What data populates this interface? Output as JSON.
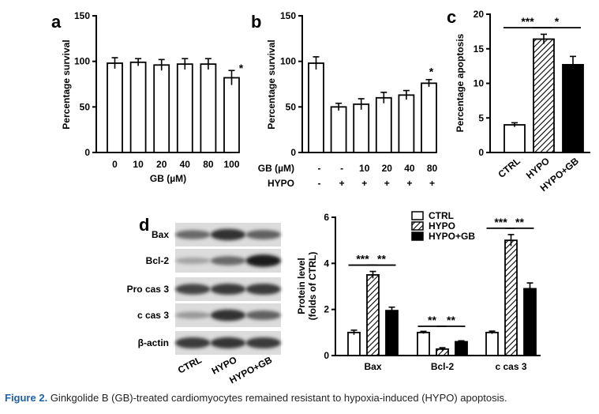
{
  "caption": {
    "label": "Figure 2.",
    "text": "Ginkgolide B (GB)-treated cardiomyocytes remained resistant to hypoxia-induced (HYPO) apoptosis."
  },
  "chart_data": [
    {
      "id": "a",
      "panel_label": "a",
      "type": "bar",
      "ylabel": "Percentage survival",
      "xlabel": "GB (µM)",
      "categories": [
        "0",
        "10",
        "20",
        "40",
        "80",
        "100"
      ],
      "values": [
        98,
        99,
        96,
        97,
        97,
        82
      ],
      "errors": [
        6,
        4,
        6,
        6,
        6,
        8
      ],
      "significance": [
        "",
        "",
        "",
        "",
        "",
        "*"
      ],
      "ylim": [
        0,
        150
      ],
      "yticks": [
        "0",
        "50",
        "100",
        "150"
      ],
      "fill": "#ffffff"
    },
    {
      "id": "b",
      "panel_label": "b",
      "type": "bar",
      "ylabel": "Percentage survival",
      "values": [
        98,
        50,
        53,
        60,
        63,
        76
      ],
      "errors": [
        7,
        4,
        6,
        6,
        5,
        4
      ],
      "significance": [
        "",
        "",
        "",
        "",
        "",
        "*"
      ],
      "ylim": [
        0,
        150
      ],
      "yticks": [
        "0",
        "50",
        "100",
        "150"
      ],
      "condition_rows": [
        {
          "label": "GB (µM)",
          "values": [
            "-",
            "-",
            "10",
            "20",
            "40",
            "80"
          ]
        },
        {
          "label": "HYPO",
          "values": [
            "-",
            "+",
            "+",
            "+",
            "+",
            "+"
          ]
        }
      ],
      "fill": "#ffffff"
    },
    {
      "id": "c",
      "panel_label": "c",
      "type": "bar",
      "ylabel": "Percentage apoptosis",
      "categories": [
        "CTRL",
        "HYPO",
        "HYPO+GB"
      ],
      "values": [
        4.0,
        16.4,
        12.7
      ],
      "errors": [
        0.3,
        0.7,
        1.2
      ],
      "fills": [
        "white",
        "hatch",
        "black"
      ],
      "ylim": [
        0,
        20
      ],
      "yticks": [
        "0",
        "5",
        "10",
        "15",
        "20"
      ],
      "comparisons": [
        {
          "from": 0,
          "to": 1,
          "label": "***"
        },
        {
          "from": 1,
          "to": 2,
          "label": "*"
        }
      ]
    },
    {
      "id": "d",
      "panel_label": "d",
      "type": "bar",
      "ylabel": [
        "Protein level",
        "(folds of CTRL)"
      ],
      "categories": [
        "Bax",
        "Bcl-2",
        "c cas 3"
      ],
      "series": [
        {
          "name": "CTRL",
          "fill": "white",
          "values": [
            1.0,
            1.0,
            1.0
          ],
          "errors": [
            0.1,
            0.05,
            0.06
          ]
        },
        {
          "name": "HYPO",
          "fill": "hatch",
          "values": [
            3.5,
            0.28,
            5.0
          ],
          "errors": [
            0.15,
            0.06,
            0.25
          ]
        },
        {
          "name": "HYPO+GB",
          "fill": "black",
          "values": [
            1.95,
            0.6,
            2.9
          ],
          "errors": [
            0.15,
            0.04,
            0.25
          ]
        }
      ],
      "ylim": [
        0,
        6
      ],
      "yticks": [
        "0",
        "2",
        "4",
        "6"
      ],
      "legend_position": "top-right",
      "comparisons": [
        {
          "group": 0,
          "from": 0,
          "to": 1,
          "label": "***"
        },
        {
          "group": 0,
          "from": 1,
          "to": 2,
          "label": "**"
        },
        {
          "group": 1,
          "from": 0,
          "to": 1,
          "label": "**"
        },
        {
          "group": 1,
          "from": 1,
          "to": 2,
          "label": "**"
        },
        {
          "group": 2,
          "from": 0,
          "to": 1,
          "label": "***"
        },
        {
          "group": 2,
          "from": 1,
          "to": 2,
          "label": "**"
        }
      ]
    }
  ],
  "blot": {
    "rows": [
      "Bax",
      "Bcl-2",
      "Pro cas 3",
      "c cas 3",
      "β-actin"
    ],
    "lanes": [
      "CTRL",
      "HYPO",
      "HYPO+GB"
    ],
    "relative_intensity": [
      [
        0.55,
        0.85,
        0.6
      ],
      [
        0.25,
        0.55,
        0.95
      ],
      [
        0.75,
        0.8,
        0.8
      ],
      [
        0.3,
        0.85,
        0.6
      ],
      [
        0.8,
        0.82,
        0.8
      ]
    ]
  }
}
